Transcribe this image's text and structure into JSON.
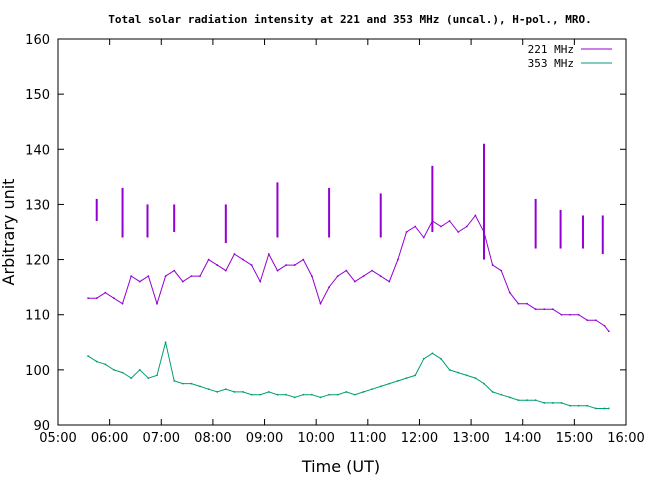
{
  "chart_data": {
    "type": "line",
    "title": "Total solar radiation intensity at 221 and 353 MHz (uncal.), H-pol., MRO.",
    "xlabel": "Time (UT)",
    "ylabel": "Arbitrary unit",
    "xlim": [
      "05:00",
      "16:00"
    ],
    "ylim": [
      90,
      160
    ],
    "x_ticks": [
      "05:00",
      "06:00",
      "07:00",
      "08:00",
      "09:00",
      "10:00",
      "11:00",
      "12:00",
      "13:00",
      "14:00",
      "15:00",
      "16:00"
    ],
    "y_ticks": [
      90,
      100,
      110,
      120,
      130,
      140,
      150,
      160
    ],
    "grid": false,
    "legend_position": "top-right",
    "series": [
      {
        "name": "221 MHz",
        "color": "#9400d3",
        "x": [
          "05:35",
          "05:45",
          "05:55",
          "06:05",
          "06:15",
          "06:25",
          "06:35",
          "06:45",
          "06:55",
          "07:05",
          "07:15",
          "07:25",
          "07:35",
          "07:45",
          "07:55",
          "08:05",
          "08:15",
          "08:25",
          "08:35",
          "08:45",
          "08:55",
          "09:05",
          "09:15",
          "09:25",
          "09:35",
          "09:45",
          "09:55",
          "10:05",
          "10:15",
          "10:25",
          "10:35",
          "10:45",
          "10:55",
          "11:05",
          "11:15",
          "11:25",
          "11:35",
          "11:45",
          "11:55",
          "12:05",
          "12:15",
          "12:25",
          "12:35",
          "12:45",
          "12:55",
          "13:05",
          "13:15",
          "13:25",
          "13:35",
          "13:45",
          "13:55",
          "14:05",
          "14:15",
          "14:25",
          "14:35",
          "14:45",
          "14:55",
          "15:05",
          "15:15",
          "15:25",
          "15:35",
          "15:40"
        ],
        "values": [
          113,
          113,
          114,
          113,
          112,
          117,
          116,
          117,
          112,
          117,
          118,
          116,
          117,
          117,
          120,
          119,
          118,
          121,
          120,
          119,
          116,
          121,
          118,
          119,
          119,
          120,
          117,
          112,
          115,
          117,
          118,
          116,
          117,
          118,
          117,
          116,
          120,
          125,
          126,
          124,
          127,
          126,
          127,
          125,
          126,
          128,
          125,
          119,
          118,
          114,
          112,
          112,
          111,
          111,
          111,
          110,
          110,
          110,
          109,
          109,
          108,
          107
        ]
      },
      {
        "name": "353 MHz",
        "color": "#009e73",
        "x": [
          "05:35",
          "05:45",
          "05:55",
          "06:05",
          "06:15",
          "06:25",
          "06:35",
          "06:45",
          "06:55",
          "07:05",
          "07:15",
          "07:25",
          "07:35",
          "07:45",
          "07:55",
          "08:05",
          "08:15",
          "08:25",
          "08:35",
          "08:45",
          "08:55",
          "09:05",
          "09:15",
          "09:25",
          "09:35",
          "09:45",
          "09:55",
          "10:05",
          "10:15",
          "10:25",
          "10:35",
          "10:45",
          "10:55",
          "11:05",
          "11:15",
          "11:25",
          "11:35",
          "11:45",
          "11:55",
          "12:05",
          "12:15",
          "12:25",
          "12:35",
          "12:45",
          "12:55",
          "13:05",
          "13:15",
          "13:25",
          "13:35",
          "13:45",
          "13:55",
          "14:05",
          "14:15",
          "14:25",
          "14:35",
          "14:45",
          "14:55",
          "15:05",
          "15:15",
          "15:25",
          "15:35",
          "15:40"
        ],
        "values": [
          102.5,
          101.5,
          101,
          100,
          99.5,
          98.5,
          100,
          98.5,
          99,
          105,
          98,
          97.5,
          97.5,
          97,
          96.5,
          96,
          96.5,
          96,
          96,
          95.5,
          95.5,
          96,
          95.5,
          95.5,
          95,
          95.5,
          95.5,
          95,
          95.5,
          95.5,
          96,
          95.5,
          96,
          96.5,
          97,
          97.5,
          98,
          98.5,
          99,
          102,
          103,
          102,
          100,
          99.5,
          99,
          98.5,
          97.5,
          96,
          95.5,
          95,
          94.5,
          94.5,
          94.5,
          94,
          94,
          94,
          93.5,
          93.5,
          93.5,
          93,
          93,
          93
        ]
      }
    ],
    "spikes_221_mhz": [
      {
        "x": "05:45",
        "low": 127,
        "high": 131
      },
      {
        "x": "06:15",
        "low": 124,
        "high": 133
      },
      {
        "x": "06:44",
        "low": 124,
        "high": 130
      },
      {
        "x": "07:15",
        "low": 125,
        "high": 130
      },
      {
        "x": "08:15",
        "low": 123,
        "high": 130
      },
      {
        "x": "09:15",
        "low": 124,
        "high": 134
      },
      {
        "x": "10:15",
        "low": 124,
        "high": 133
      },
      {
        "x": "11:15",
        "low": 124,
        "high": 132
      },
      {
        "x": "12:15",
        "low": 125,
        "high": 137
      },
      {
        "x": "13:15",
        "low": 120,
        "high": 141
      },
      {
        "x": "14:15",
        "low": 122,
        "high": 131
      },
      {
        "x": "14:44",
        "low": 122,
        "high": 129
      },
      {
        "x": "15:10",
        "low": 122,
        "high": 128
      },
      {
        "x": "15:33",
        "low": 121,
        "high": 128
      }
    ]
  }
}
